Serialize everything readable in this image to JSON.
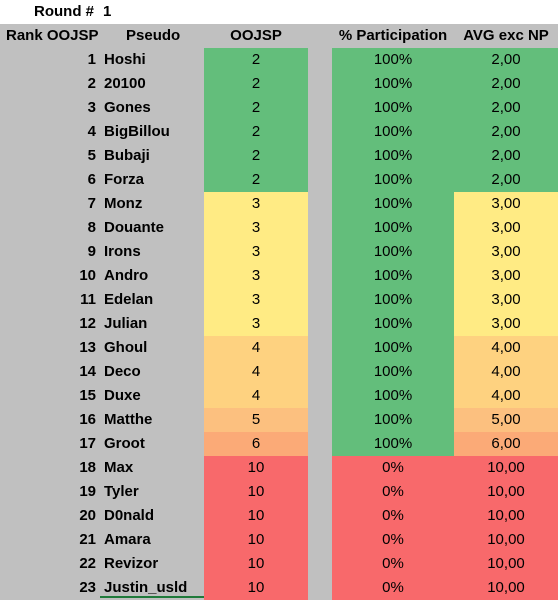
{
  "title": {
    "label": "Round #",
    "value": "1"
  },
  "headers": {
    "rank": "Rank OOJSP",
    "pseudo": "Pseudo",
    "oojsp": "OOJSP",
    "participation": "% Participation",
    "avg": "AVG exc NP"
  },
  "colors": {
    "green": "#63be7b",
    "yellow": "#ffeb84",
    "light_orange": "#fed280",
    "orange": "#fcc07f",
    "dark_orange": "#fbaa77",
    "red": "#f8696b",
    "sheet_grey": "#c0c0c0"
  },
  "rows": [
    {
      "rank": "1",
      "pseudo": "Hoshi",
      "oojsp": "2",
      "participation": "100%",
      "avg": "2,00",
      "oojsp_color": "#63be7b",
      "part_color": "#63be7b",
      "avg_color": "#63be7b"
    },
    {
      "rank": "2",
      "pseudo": "20100",
      "oojsp": "2",
      "participation": "100%",
      "avg": "2,00",
      "oojsp_color": "#63be7b",
      "part_color": "#63be7b",
      "avg_color": "#63be7b"
    },
    {
      "rank": "3",
      "pseudo": "Gones",
      "oojsp": "2",
      "participation": "100%",
      "avg": "2,00",
      "oojsp_color": "#63be7b",
      "part_color": "#63be7b",
      "avg_color": "#63be7b"
    },
    {
      "rank": "4",
      "pseudo": "BigBillou",
      "oojsp": "2",
      "participation": "100%",
      "avg": "2,00",
      "oojsp_color": "#63be7b",
      "part_color": "#63be7b",
      "avg_color": "#63be7b"
    },
    {
      "rank": "5",
      "pseudo": "Bubaji",
      "oojsp": "2",
      "participation": "100%",
      "avg": "2,00",
      "oojsp_color": "#63be7b",
      "part_color": "#63be7b",
      "avg_color": "#63be7b"
    },
    {
      "rank": "6",
      "pseudo": "Forza",
      "oojsp": "2",
      "participation": "100%",
      "avg": "2,00",
      "oojsp_color": "#63be7b",
      "part_color": "#63be7b",
      "avg_color": "#63be7b"
    },
    {
      "rank": "7",
      "pseudo": "Monz",
      "oojsp": "3",
      "participation": "100%",
      "avg": "3,00",
      "oojsp_color": "#ffeb84",
      "part_color": "#63be7b",
      "avg_color": "#ffeb84"
    },
    {
      "rank": "8",
      "pseudo": "Douante",
      "oojsp": "3",
      "participation": "100%",
      "avg": "3,00",
      "oojsp_color": "#ffeb84",
      "part_color": "#63be7b",
      "avg_color": "#ffeb84"
    },
    {
      "rank": "9",
      "pseudo": "Irons",
      "oojsp": "3",
      "participation": "100%",
      "avg": "3,00",
      "oojsp_color": "#ffeb84",
      "part_color": "#63be7b",
      "avg_color": "#ffeb84"
    },
    {
      "rank": "10",
      "pseudo": "Andro",
      "oojsp": "3",
      "participation": "100%",
      "avg": "3,00",
      "oojsp_color": "#ffeb84",
      "part_color": "#63be7b",
      "avg_color": "#ffeb84"
    },
    {
      "rank": "11",
      "pseudo": "Edelan",
      "oojsp": "3",
      "participation": "100%",
      "avg": "3,00",
      "oojsp_color": "#ffeb84",
      "part_color": "#63be7b",
      "avg_color": "#ffeb84"
    },
    {
      "rank": "12",
      "pseudo": "Julian",
      "oojsp": "3",
      "participation": "100%",
      "avg": "3,00",
      "oojsp_color": "#ffeb84",
      "part_color": "#63be7b",
      "avg_color": "#ffeb84"
    },
    {
      "rank": "13",
      "pseudo": "Ghoul",
      "oojsp": "4",
      "participation": "100%",
      "avg": "4,00",
      "oojsp_color": "#fed280",
      "part_color": "#63be7b",
      "avg_color": "#fed280"
    },
    {
      "rank": "14",
      "pseudo": "Deco",
      "oojsp": "4",
      "participation": "100%",
      "avg": "4,00",
      "oojsp_color": "#fed280",
      "part_color": "#63be7b",
      "avg_color": "#fed280"
    },
    {
      "rank": "15",
      "pseudo": "Duxe",
      "oojsp": "4",
      "participation": "100%",
      "avg": "4,00",
      "oojsp_color": "#fed280",
      "part_color": "#63be7b",
      "avg_color": "#fed280"
    },
    {
      "rank": "16",
      "pseudo": "Matthe",
      "oojsp": "5",
      "participation": "100%",
      "avg": "5,00",
      "oojsp_color": "#fcc07f",
      "part_color": "#63be7b",
      "avg_color": "#fcc07f"
    },
    {
      "rank": "17",
      "pseudo": "Groot",
      "oojsp": "6",
      "participation": "100%",
      "avg": "6,00",
      "oojsp_color": "#fbaa77",
      "part_color": "#63be7b",
      "avg_color": "#fbaa77"
    },
    {
      "rank": "18",
      "pseudo": "Max",
      "oojsp": "10",
      "participation": "0%",
      "avg": "10,00",
      "oojsp_color": "#f8696b",
      "part_color": "#f8696b",
      "avg_color": "#f8696b"
    },
    {
      "rank": "19",
      "pseudo": "Tyler",
      "oojsp": "10",
      "participation": "0%",
      "avg": "10,00",
      "oojsp_color": "#f8696b",
      "part_color": "#f8696b",
      "avg_color": "#f8696b"
    },
    {
      "rank": "20",
      "pseudo": "D0nald",
      "oojsp": "10",
      "participation": "0%",
      "avg": "10,00",
      "oojsp_color": "#f8696b",
      "part_color": "#f8696b",
      "avg_color": "#f8696b"
    },
    {
      "rank": "21",
      "pseudo": "Amara",
      "oojsp": "10",
      "participation": "0%",
      "avg": "10,00",
      "oojsp_color": "#f8696b",
      "part_color": "#f8696b",
      "avg_color": "#f8696b"
    },
    {
      "rank": "22",
      "pseudo": "Revizor",
      "oojsp": "10",
      "participation": "0%",
      "avg": "10,00",
      "oojsp_color": "#f8696b",
      "part_color": "#f8696b",
      "avg_color": "#f8696b"
    },
    {
      "rank": "23",
      "pseudo": "Justin_usld",
      "oojsp": "10",
      "participation": "0%",
      "avg": "10,00",
      "oojsp_color": "#f8696b",
      "part_color": "#f8696b",
      "avg_color": "#f8696b"
    }
  ]
}
